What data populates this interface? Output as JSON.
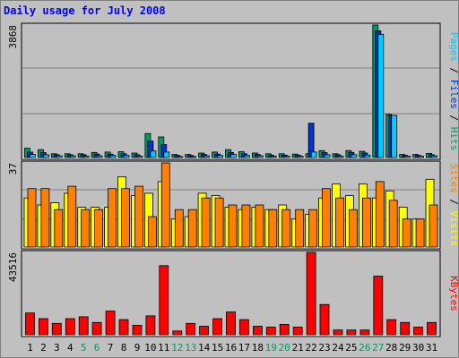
{
  "chart_data": [
    {
      "type": "bar",
      "title": "Daily usage for July 2008",
      "ymax_label": "3868",
      "right_legend": [
        {
          "text": "Pages",
          "color": "#00ccff"
        },
        {
          "text": "Files",
          "color": "#0033cc"
        },
        {
          "text": "Hits",
          "color": "#009966"
        }
      ],
      "categories": [
        "1",
        "2",
        "3",
        "4",
        "5",
        "6",
        "7",
        "8",
        "9",
        "10",
        "11",
        "12",
        "13",
        "14",
        "15",
        "16",
        "17",
        "18",
        "19",
        "20",
        "21",
        "22",
        "23",
        "24",
        "25",
        "26",
        "27",
        "28",
        "29",
        "30",
        "31"
      ],
      "weekend_days": [
        "5",
        "6",
        "12",
        "13",
        "19",
        "20",
        "26",
        "27"
      ],
      "series": [
        {
          "name": "Hits",
          "color": "#009966",
          "values": [
            270,
            230,
            110,
            110,
            110,
            150,
            160,
            170,
            130,
            700,
            600,
            90,
            90,
            130,
            160,
            230,
            170,
            130,
            110,
            110,
            100,
            110,
            200,
            110,
            200,
            180,
            3868,
            1260,
            90,
            90,
            120
          ]
        },
        {
          "name": "Files",
          "color": "#0033cc",
          "values": [
            160,
            140,
            80,
            80,
            80,
            100,
            100,
            110,
            80,
            480,
            380,
            60,
            60,
            90,
            100,
            150,
            110,
            90,
            70,
            70,
            70,
            1000,
            140,
            80,
            150,
            130,
            3700,
            1230,
            60,
            60,
            80
          ]
        },
        {
          "name": "Pages",
          "color": "#00ccff",
          "values": [
            90,
            80,
            50,
            50,
            40,
            50,
            60,
            60,
            40,
            190,
            160,
            30,
            30,
            50,
            60,
            90,
            60,
            50,
            40,
            40,
            40,
            160,
            80,
            40,
            80,
            70,
            3600,
            1230,
            40,
            40,
            50
          ]
        }
      ]
    },
    {
      "type": "bar",
      "ymax_label": "37",
      "right_legend": [
        {
          "text": "Sites",
          "color": "#ff8000"
        },
        {
          "text": "Visits",
          "color": "#ffff00"
        }
      ],
      "categories": [
        "1",
        "2",
        "3",
        "4",
        "5",
        "6",
        "7",
        "8",
        "9",
        "10",
        "11",
        "12",
        "13",
        "14",
        "15",
        "16",
        "17",
        "18",
        "19",
        "20",
        "21",
        "22",
        "23",
        "24",
        "25",
        "26",
        "27",
        "28",
        "29",
        "30",
        "31"
      ],
      "series": [
        {
          "name": "Visits",
          "color": "#ffff00",
          "values": [
            21,
            18,
            19,
            23,
            17,
            17,
            17,
            30,
            22,
            23,
            28,
            12,
            13,
            23,
            22,
            17,
            16,
            17,
            16,
            18,
            12,
            14,
            21,
            27,
            22,
            27,
            21,
            24,
            17,
            12,
            29
          ]
        },
        {
          "name": "Sites",
          "color": "#ff8000",
          "values": [
            25,
            25,
            16,
            26,
            16,
            16,
            25,
            25,
            26,
            13,
            36,
            16,
            16,
            21,
            21,
            18,
            18,
            18,
            16,
            16,
            16,
            16,
            25,
            21,
            16,
            21,
            28,
            20,
            12,
            12,
            18
          ]
        }
      ]
    },
    {
      "type": "bar",
      "ymax_label": "43516",
      "right_legend": [
        {
          "text": "KBytes",
          "color": "#ff0000"
        }
      ],
      "categories": [
        "1",
        "2",
        "3",
        "4",
        "5",
        "6",
        "7",
        "8",
        "9",
        "10",
        "11",
        "12",
        "13",
        "14",
        "15",
        "16",
        "17",
        "18",
        "19",
        "20",
        "21",
        "22",
        "23",
        "24",
        "25",
        "26",
        "27",
        "28",
        "29",
        "30",
        "31"
      ],
      "series": [
        {
          "name": "KBytes",
          "color": "#ff0000",
          "values": [
            11500,
            8500,
            6000,
            8500,
            9500,
            6500,
            12500,
            8000,
            5000,
            10000,
            36500,
            2000,
            6000,
            4500,
            8500,
            12000,
            8000,
            4500,
            4000,
            5500,
            4000,
            43516,
            16000,
            2500,
            2500,
            2500,
            31000,
            8000,
            6500,
            4000,
            6500
          ]
        }
      ]
    }
  ]
}
